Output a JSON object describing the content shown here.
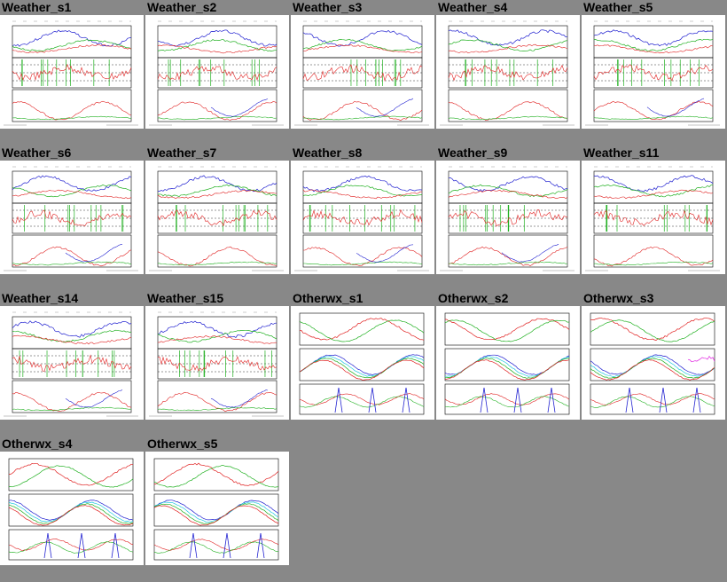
{
  "gallery": {
    "items": [
      {
        "title": "Weather_s1",
        "style": "weather"
      },
      {
        "title": "Weather_s2",
        "style": "weather"
      },
      {
        "title": "Weather_s3",
        "style": "weather"
      },
      {
        "title": "Weather_s4",
        "style": "weather"
      },
      {
        "title": "Weather_s5",
        "style": "weather"
      },
      {
        "title": "Weather_s6",
        "style": "weather"
      },
      {
        "title": "Weather_s7",
        "style": "weather"
      },
      {
        "title": "Weather_s8",
        "style": "weather"
      },
      {
        "title": "Weather_s9",
        "style": "weather"
      },
      {
        "title": "Weather_s11",
        "style": "weather"
      },
      {
        "title": "Weather_s14",
        "style": "weather"
      },
      {
        "title": "Weather_s15",
        "style": "weather"
      },
      {
        "title": "Otherwx_s1",
        "style": "otherwx"
      },
      {
        "title": "Otherwx_s2",
        "style": "otherwx"
      },
      {
        "title": "Otherwx_s3",
        "style": "otherwx"
      },
      {
        "title": "Otherwx_s4",
        "style": "otherwx"
      },
      {
        "title": "Otherwx_s5",
        "style": "otherwx"
      }
    ]
  },
  "colors": {
    "background": "#888888",
    "panel": "#ffffff",
    "red": "#e02020",
    "green": "#20b020",
    "blue": "#2020d0",
    "cyan": "#20c8e0",
    "magenta": "#e020e0"
  }
}
